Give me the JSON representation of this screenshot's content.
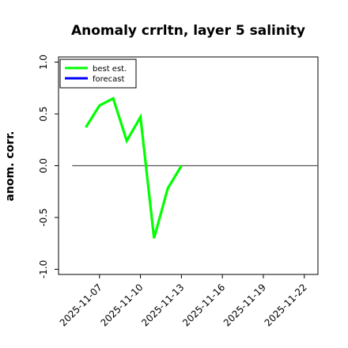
{
  "chart_data": {
    "type": "line",
    "title": "Anomaly crrltn, layer 5 salinity",
    "ylabel": "anom. corr.",
    "xlabel": "",
    "ylim": [
      -1.05,
      1.05
    ],
    "xlim": [
      "2025-11-04",
      "2025-11-23"
    ],
    "yticks": [
      -1.0,
      -0.5,
      0.0,
      0.5,
      1.0
    ],
    "ytick_labels": [
      "-1.0",
      "-0.5",
      "0.0",
      "0.5",
      "1.0"
    ],
    "xticks": [
      "2025-11-07",
      "2025-11-10",
      "2025-11-13",
      "2025-11-16",
      "2025-11-19",
      "2025-11-22"
    ],
    "highlight_tick": "2025-11-13",
    "highlight_color": "#2e8b2e",
    "reference_line": {
      "y": 0.0,
      "x_start": "2025-11-05",
      "x_end": "2025-11-23",
      "color": "#555555"
    },
    "legend_position": "top-left",
    "grid": false,
    "series": [
      {
        "name": "best est.",
        "color": "#00ff00",
        "x": [
          "2025-11-06",
          "2025-11-07",
          "2025-11-08",
          "2025-11-09",
          "2025-11-10",
          "2025-11-11",
          "2025-11-12",
          "2025-11-13"
        ],
        "y": [
          0.37,
          0.58,
          0.65,
          0.24,
          0.47,
          -0.7,
          -0.22,
          0.0
        ]
      },
      {
        "name": "forecast",
        "color": "#0000ff",
        "x": [],
        "y": []
      }
    ]
  }
}
